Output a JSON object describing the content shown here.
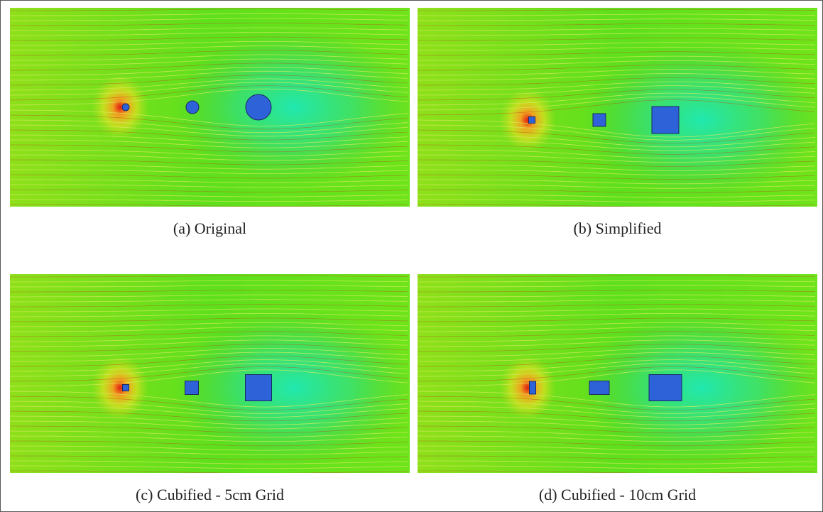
{
  "figure": {
    "panels": [
      {
        "caption": "(a) Original"
      },
      {
        "caption": "(b) Simplified"
      },
      {
        "caption": "(c) Cubified - 5cm Grid"
      },
      {
        "caption": "(d) Cubified - 10cm Grid"
      }
    ]
  }
}
